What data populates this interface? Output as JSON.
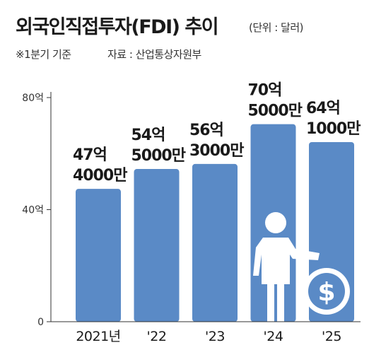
{
  "title": "외국인직접투자(FDI) 추이",
  "unit": "(단위 : 달러)",
  "note": "※1분기 기준",
  "source": "자료 : 산업통상자원부",
  "colors": {
    "bar": "#5a8ac6",
    "text": "#1a1a1a",
    "axis": "#333333",
    "grid": "#dddddd"
  },
  "chart_data": {
    "type": "bar",
    "categories": [
      "2021년",
      "'22",
      "'23",
      "'24",
      "'25"
    ],
    "values": [
      47.4,
      54.5,
      56.3,
      70.5,
      64.1
    ],
    "data_labels": [
      [
        "47억",
        "4000만"
      ],
      [
        "54억",
        "5000만"
      ],
      [
        "56억",
        "3000만"
      ],
      [
        "70억",
        "5000만"
      ],
      [
        "64억",
        "1000만"
      ]
    ],
    "yticks": [
      {
        "value": 0,
        "label": "0"
      },
      {
        "value": 40,
        "label": "40억"
      },
      {
        "value": 80,
        "label": "80억"
      }
    ],
    "ylim": [
      0,
      80
    ],
    "grid": false,
    "decorations": [
      "businessman-icon",
      "dollar-coin-icon"
    ]
  }
}
